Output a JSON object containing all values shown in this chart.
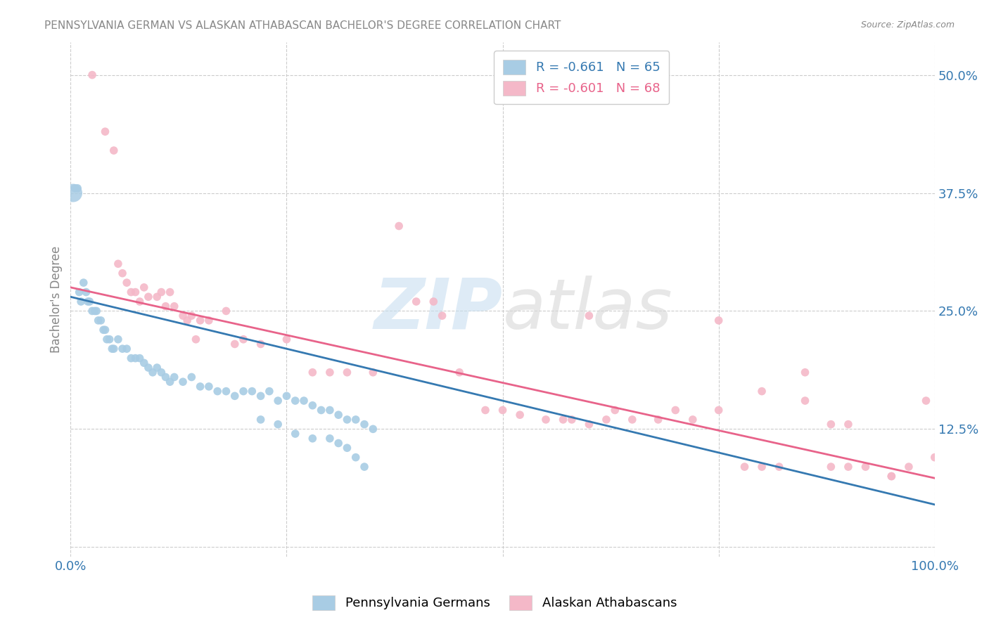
{
  "title": "PENNSYLVANIA GERMAN VS ALASKAN ATHABASCAN BACHELOR'S DEGREE CORRELATION CHART",
  "source": "Source: ZipAtlas.com",
  "ylabel": "Bachelor's Degree",
  "ytick_labels": [
    "",
    "12.5%",
    "25.0%",
    "37.5%",
    "50.0%"
  ],
  "ytick_values": [
    0,
    0.125,
    0.25,
    0.375,
    0.5
  ],
  "xlim": [
    0,
    1.0
  ],
  "ylim": [
    -0.01,
    0.535
  ],
  "legend_blue_r": "R = -0.661",
  "legend_blue_n": "N = 65",
  "legend_pink_r": "R = -0.601",
  "legend_pink_n": "N = 68",
  "legend_blue_label": "Pennsylvania Germans",
  "legend_pink_label": "Alaskan Athabascans",
  "blue_color": "#a8cce4",
  "pink_color": "#f4b8c8",
  "blue_line_color": "#3579b1",
  "pink_line_color": "#e8638a",
  "blue_scatter_x": [
    0.005,
    0.008,
    0.01,
    0.012,
    0.015,
    0.018,
    0.02,
    0.022,
    0.025,
    0.028,
    0.03,
    0.032,
    0.035,
    0.038,
    0.04,
    0.042,
    0.045,
    0.048,
    0.05,
    0.055,
    0.06,
    0.065,
    0.07,
    0.075,
    0.08,
    0.085,
    0.09,
    0.095,
    0.1,
    0.105,
    0.11,
    0.115,
    0.12,
    0.13,
    0.14,
    0.15,
    0.16,
    0.17,
    0.18,
    0.19,
    0.2,
    0.21,
    0.22,
    0.23,
    0.24,
    0.25,
    0.26,
    0.27,
    0.28,
    0.29,
    0.3,
    0.31,
    0.32,
    0.33,
    0.34,
    0.35,
    0.22,
    0.24,
    0.26,
    0.28,
    0.3,
    0.31,
    0.32,
    0.33,
    0.34
  ],
  "blue_scatter_y": [
    0.38,
    0.38,
    0.27,
    0.26,
    0.28,
    0.27,
    0.26,
    0.26,
    0.25,
    0.25,
    0.25,
    0.24,
    0.24,
    0.23,
    0.23,
    0.22,
    0.22,
    0.21,
    0.21,
    0.22,
    0.21,
    0.21,
    0.2,
    0.2,
    0.2,
    0.195,
    0.19,
    0.185,
    0.19,
    0.185,
    0.18,
    0.175,
    0.18,
    0.175,
    0.18,
    0.17,
    0.17,
    0.165,
    0.165,
    0.16,
    0.165,
    0.165,
    0.16,
    0.165,
    0.155,
    0.16,
    0.155,
    0.155,
    0.15,
    0.145,
    0.145,
    0.14,
    0.135,
    0.135,
    0.13,
    0.125,
    0.135,
    0.13,
    0.12,
    0.115,
    0.115,
    0.11,
    0.105,
    0.095,
    0.085
  ],
  "pink_scatter_x": [
    0.025,
    0.04,
    0.05,
    0.055,
    0.06,
    0.065,
    0.07,
    0.075,
    0.08,
    0.085,
    0.09,
    0.1,
    0.105,
    0.11,
    0.115,
    0.12,
    0.13,
    0.135,
    0.14,
    0.145,
    0.15,
    0.16,
    0.18,
    0.19,
    0.2,
    0.22,
    0.25,
    0.28,
    0.3,
    0.32,
    0.35,
    0.38,
    0.4,
    0.42,
    0.45,
    0.48,
    0.5,
    0.52,
    0.55,
    0.57,
    0.58,
    0.6,
    0.62,
    0.63,
    0.65,
    0.68,
    0.7,
    0.72,
    0.75,
    0.78,
    0.8,
    0.82,
    0.85,
    0.88,
    0.9,
    0.92,
    0.95,
    0.97,
    0.99,
    1.0,
    0.43,
    0.6,
    0.75,
    0.8,
    0.85,
    0.88,
    0.9,
    0.95
  ],
  "pink_scatter_y": [
    0.5,
    0.44,
    0.42,
    0.3,
    0.29,
    0.28,
    0.27,
    0.27,
    0.26,
    0.275,
    0.265,
    0.265,
    0.27,
    0.255,
    0.27,
    0.255,
    0.245,
    0.24,
    0.245,
    0.22,
    0.24,
    0.24,
    0.25,
    0.215,
    0.22,
    0.215,
    0.22,
    0.185,
    0.185,
    0.185,
    0.185,
    0.34,
    0.26,
    0.26,
    0.185,
    0.145,
    0.145,
    0.14,
    0.135,
    0.135,
    0.135,
    0.13,
    0.135,
    0.145,
    0.135,
    0.135,
    0.145,
    0.135,
    0.145,
    0.085,
    0.085,
    0.085,
    0.155,
    0.13,
    0.13,
    0.085,
    0.075,
    0.085,
    0.155,
    0.095,
    0.245,
    0.245,
    0.24,
    0.165,
    0.185,
    0.085,
    0.085,
    0.075
  ],
  "blue_line_x0": 0.0,
  "blue_line_x1": 1.0,
  "blue_line_y0": 0.265,
  "blue_line_y1": 0.045,
  "pink_line_x0": 0.0,
  "pink_line_x1": 1.0,
  "pink_line_y0": 0.275,
  "pink_line_y1": 0.073
}
